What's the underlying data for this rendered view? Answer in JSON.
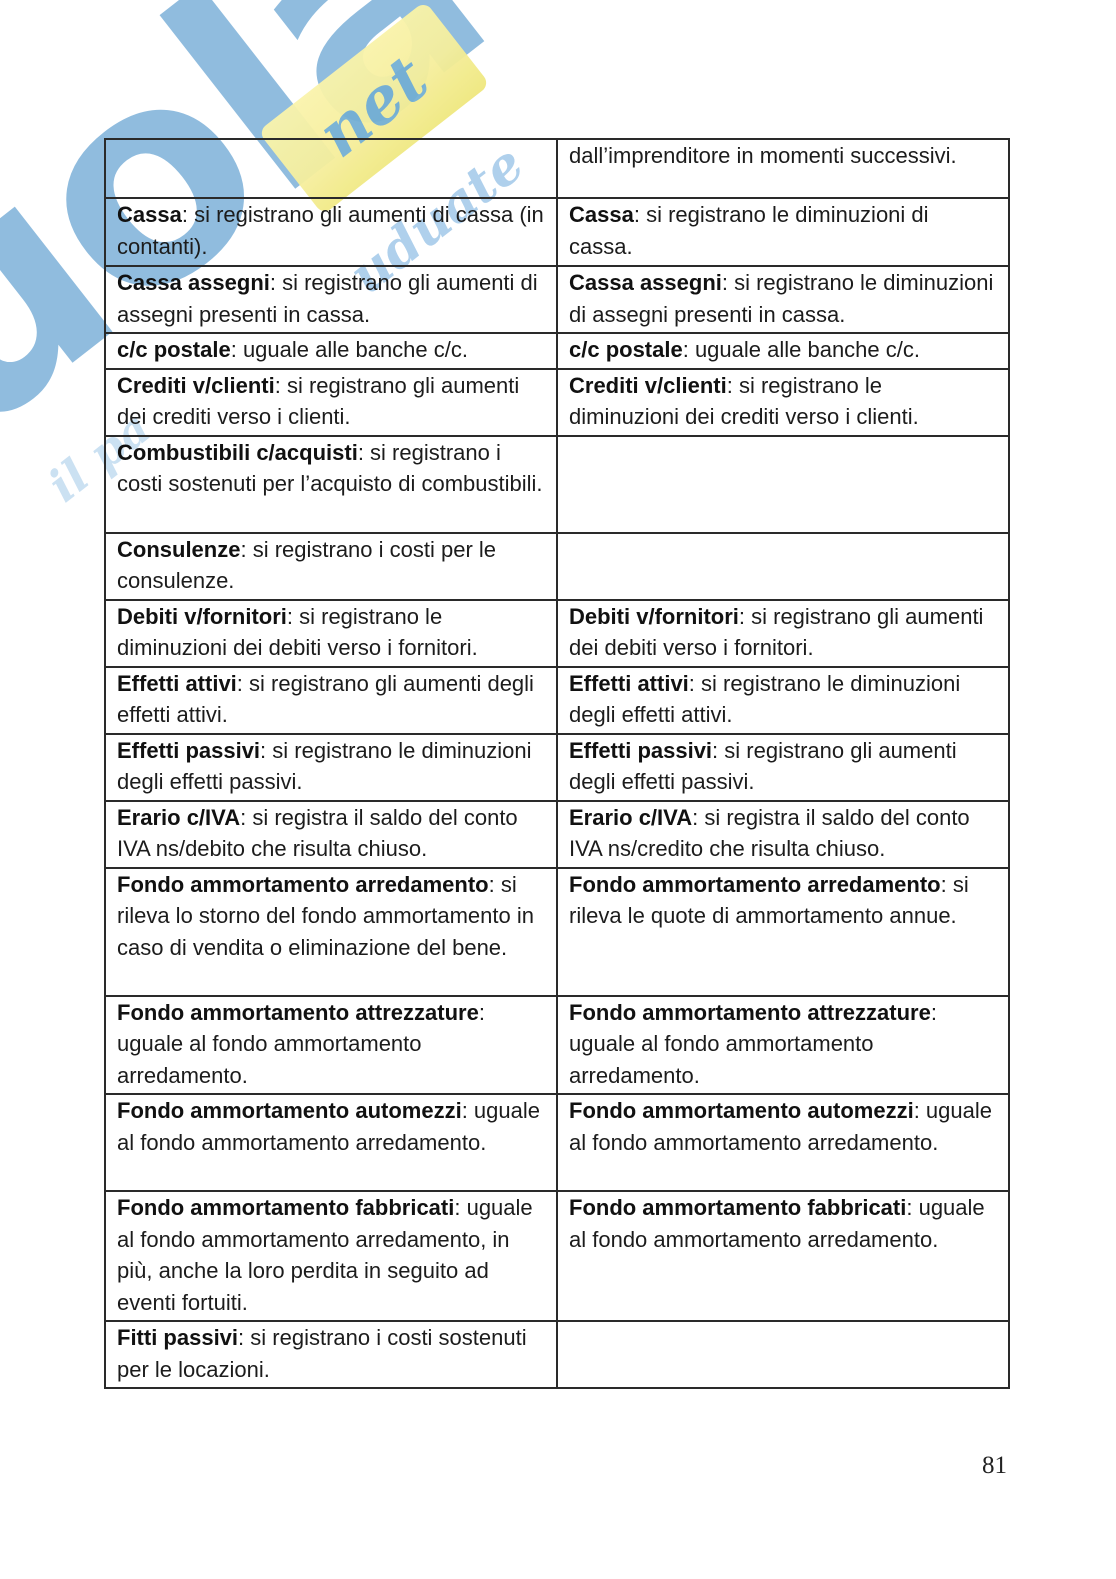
{
  "page": {
    "number": "81"
  },
  "watermark": {
    "brand": "Skuola",
    "domain_script": "net",
    "script_fragments": {
      "mid": "uduate",
      "bottom": "il pa"
    },
    "colors": {
      "blue": "#4d94cb",
      "light_blue": "#8ebde4",
      "yellow": "#f6ef9d"
    }
  },
  "table": {
    "rows": [
      {
        "left": {
          "term": "",
          "desc": ""
        },
        "right": {
          "term": "",
          "desc": "dall’imprenditore in momenti successivi."
        }
      },
      {
        "left": {
          "term": "Cassa",
          "desc": ": si registrano gli aumenti di cassa (in contanti)."
        },
        "right": {
          "term": "Cassa",
          "desc": ": si registrano le diminuzioni di cassa."
        }
      },
      {
        "left": {
          "term": "Cassa assegni",
          "desc": ": si registrano gli aumenti di assegni presenti in cassa."
        },
        "right": {
          "term": "Cassa assegni",
          "desc": ": si registrano le diminuzioni di assegni presenti in cassa."
        }
      },
      {
        "left": {
          "term": "c/c postale",
          "desc": ": uguale alle banche c/c."
        },
        "right": {
          "term": "c/c postale",
          "desc": ": uguale alle banche c/c."
        }
      },
      {
        "left": {
          "term": "Crediti v/clienti",
          "desc": ": si registrano gli aumenti dei crediti verso i clienti."
        },
        "right": {
          "term": "Crediti v/clienti",
          "desc": ": si registrano le diminuzioni dei crediti verso i clienti."
        }
      },
      {
        "left": {
          "term": "Combustibili c/acquisti",
          "desc": ": si registrano i costi sostenuti per l’acquisto di combustibili."
        },
        "right": {
          "term": "",
          "desc": ""
        }
      },
      {
        "left": {
          "term": "Consulenze",
          "desc": ": si registrano i costi per le consulenze."
        },
        "right": {
          "term": "",
          "desc": ""
        }
      },
      {
        "left": {
          "term": "Debiti v/fornitori",
          "desc": ": si registrano le diminuzioni dei debiti verso i fornitori."
        },
        "right": {
          "term": "Debiti v/fornitori",
          "desc": ": si registrano gli aumenti dei debiti verso i fornitori."
        }
      },
      {
        "left": {
          "term": "Effetti attivi",
          "desc": ": si registrano gli aumenti degli effetti attivi."
        },
        "right": {
          "term": "Effetti attivi",
          "desc": ": si registrano le diminuzioni degli effetti attivi."
        }
      },
      {
        "left": {
          "term": "Effetti passivi",
          "desc": ": si registrano le diminuzioni degli effetti passivi."
        },
        "right": {
          "term": "Effetti passivi",
          "desc": ": si registrano gli aumenti degli effetti passivi."
        }
      },
      {
        "left": {
          "term": "Erario c/IVA",
          "desc": ": si registra il saldo del conto IVA ns/debito che risulta chiuso."
        },
        "right": {
          "term": "Erario c/IVA",
          "desc": ": si registra il saldo del conto IVA ns/credito che risulta chiuso."
        }
      },
      {
        "left": {
          "term": "Fondo ammortamento arredamento",
          "desc": ": si rileva lo storno del fondo ammortamento in caso di vendita o eliminazione del bene."
        },
        "right": {
          "term": "Fondo ammortamento arredamento",
          "desc": ": si rileva le quote di ammortamento annue."
        }
      },
      {
        "left": {
          "term": "Fondo ammortamento attrezzature",
          "desc": ": uguale al fondo ammortamento arredamento."
        },
        "right": {
          "term": "Fondo ammortamento attrezzature",
          "desc": ": uguale al fondo ammortamento arredamento."
        }
      },
      {
        "left": {
          "term": "Fondo ammortamento automezzi",
          "desc": ": uguale al fondo ammortamento arredamento."
        },
        "right": {
          "term": "Fondo ammortamento automezzi",
          "desc": ": uguale al fondo ammortamento arredamento."
        }
      },
      {
        "left": {
          "term": "Fondo ammortamento fabbricati",
          "desc": ": uguale al fondo ammortamento arredamento, in più, anche la loro perdita in seguito ad eventi fortuiti."
        },
        "right": {
          "term": "Fondo ammortamento fabbricati",
          "desc": ": uguale al fondo ammortamento arredamento."
        }
      },
      {
        "left": {
          "term": "Fitti passivi",
          "desc": ": si registrano i costi sostenuti per le locazioni."
        },
        "right": {
          "term": "",
          "desc": ""
        }
      }
    ]
  }
}
